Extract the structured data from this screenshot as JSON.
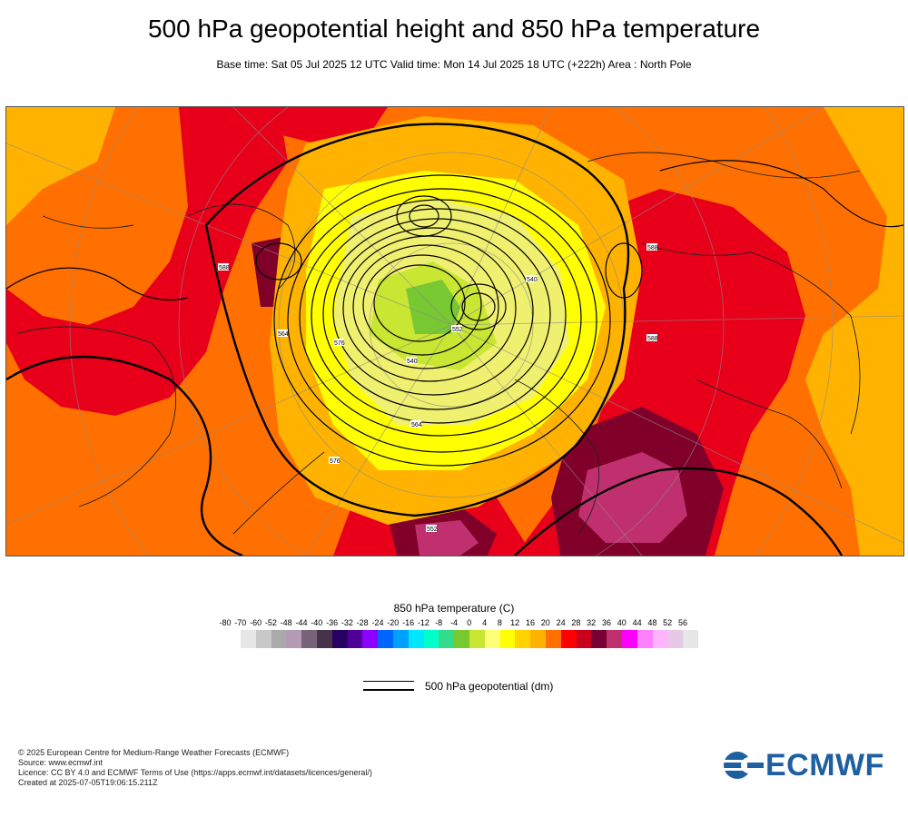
{
  "title": "500 hPa geopotential height and 850 hPa temperature",
  "subtitle": "Base time: Sat 05 Jul 2025 12 UTC Valid time: Mon 14 Jul 2025 18 UTC (+222h) Area : North Pole",
  "map": {
    "projection": "polar stereographic",
    "area": "North Pole",
    "fill_field": "850 hPa temperature (C)",
    "contour_field": "500 hPa geopotential (dm)",
    "colors": {
      "background_warm": "#ff7000",
      "mid": "#ffb300",
      "cool": "#ffff00",
      "cold": "#c8e632",
      "coldest": "#78c832",
      "hot": "#e8001a",
      "very_hot": "#80002a",
      "extreme": "#c0306e"
    }
  },
  "legend": {
    "title": "850 hPa temperature (C)",
    "ticks": [
      "-80",
      "-70",
      "-60",
      "-52",
      "-48",
      "-44",
      "-40",
      "-36",
      "-32",
      "-28",
      "-24",
      "-20",
      "-16",
      "-12",
      "-8",
      "-4",
      "0",
      "4",
      "8",
      "12",
      "16",
      "20",
      "24",
      "28",
      "32",
      "36",
      "40",
      "44",
      "48",
      "52",
      "56"
    ],
    "colors": [
      "#e6e6e6",
      "#c8c8c8",
      "#aaaaaa",
      "#b49bb4",
      "#786478",
      "#46324b",
      "#280064",
      "#500096",
      "#8c00ff",
      "#0064ff",
      "#00a0ff",
      "#00e6ff",
      "#00ffc8",
      "#32dc8c",
      "#78c832",
      "#c8e632",
      "#ffff78",
      "#ffff00",
      "#ffd200",
      "#ffb300",
      "#ff7000",
      "#ff0000",
      "#c8001e",
      "#780032",
      "#c0306e",
      "#ff00ff",
      "#ff80ff",
      "#ffb4ff",
      "#e6c8e6",
      "#e6e6e6"
    ]
  },
  "isoline_legend": "500 hPa geopotential (dm)",
  "footer": {
    "line1": "© 2025 European Centre for Medium-Range Weather Forecasts (ECMWF)",
    "line2": "Source: www.ecmwf.int",
    "line3": "Licence: CC BY 4.0 and ECMWF Terms of Use (https://apps.ecmwf.int/datasets/licences/general/)",
    "line4": "Created at 2025-07-05T19:06:15.211Z"
  },
  "logo_text": "ECMWF",
  "contour_labels": [
    "588",
    "576",
    "564",
    "552",
    "540",
    "588",
    "576",
    "564",
    "552",
    "540",
    "588"
  ]
}
